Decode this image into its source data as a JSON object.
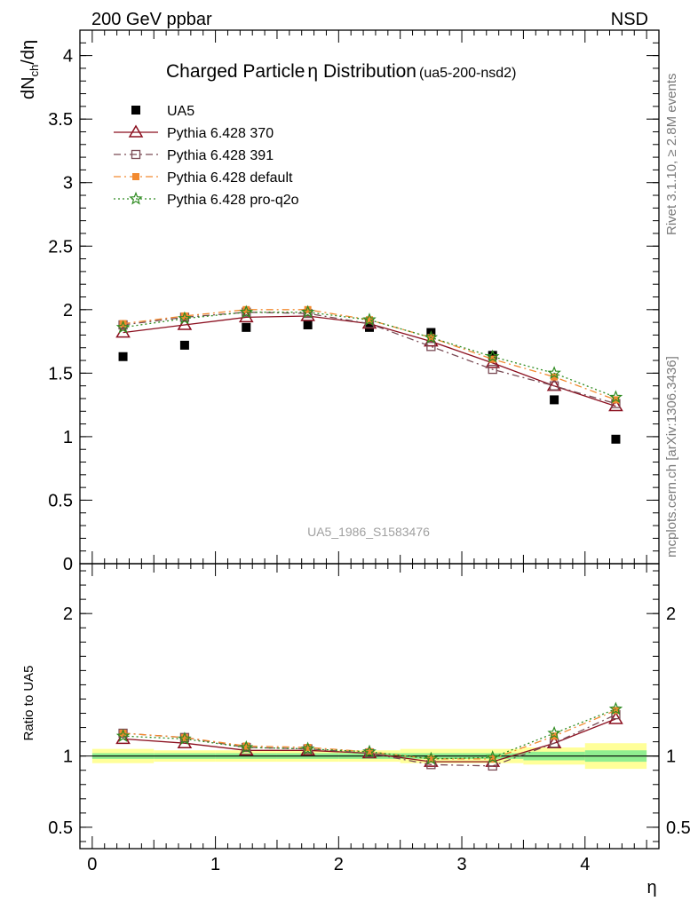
{
  "header": {
    "left": "200 GeV ppbar",
    "right": "NSD"
  },
  "side_labels": {
    "rivet": "Rivet 3.1.10, ≥ 2.8M events",
    "mcplots": "mcplots.cern.ch [arXiv:1306.3436]"
  },
  "chart_data": [
    {
      "type": "scatter",
      "panel": "main",
      "title_main": "Charged Particle",
      "title_symbol": "η",
      "title_rest": " Distribution",
      "title_small": "(ua5-200-nsd2)",
      "ylabel_main": "dN",
      "ylabel_sub": "ch",
      "ylabel_rest": "/dη",
      "watermark": "UA5_1986_S1583476",
      "xlim": [
        -0.1,
        4.6
      ],
      "ylim": [
        0,
        4.2
      ],
      "y_ticks": [
        0,
        0.5,
        1,
        1.5,
        2,
        2.5,
        3,
        3.5,
        4
      ],
      "y_tick_labels": [
        "0",
        "0.5",
        "1",
        "1.5",
        "2",
        "2.5",
        "3",
        "3.5",
        "4"
      ],
      "x": [
        0.25,
        0.75,
        1.25,
        1.75,
        2.25,
        2.75,
        3.25,
        3.75,
        4.25
      ],
      "legend_position": "top-left",
      "series": [
        {
          "name": "UA5",
          "color": "#000000",
          "marker": "square",
          "line": "none",
          "values": [
            1.63,
            1.72,
            1.86,
            1.88,
            1.86,
            1.82,
            1.64,
            1.29,
            0.98
          ]
        },
        {
          "name": "Pythia 6.428 370",
          "color": "#8b0f1f",
          "marker": "triangle",
          "line": "solid",
          "values": [
            1.82,
            1.88,
            1.94,
            1.95,
            1.89,
            1.75,
            1.58,
            1.4,
            1.24
          ]
        },
        {
          "name": "Pythia 6.428 391",
          "color": "#7a4b55",
          "marker": "square-open",
          "line": "dashdot",
          "values": [
            1.88,
            1.94,
            1.98,
            1.97,
            1.89,
            1.71,
            1.53,
            1.4,
            1.26
          ]
        },
        {
          "name": "Pythia 6.428 default",
          "color": "#f28a30",
          "marker": "square-filled",
          "line": "dashdot",
          "values": [
            1.89,
            1.95,
            2.0,
            2.0,
            1.92,
            1.78,
            1.61,
            1.47,
            1.29
          ]
        },
        {
          "name": "Pythia 6.428 pro-q2o",
          "color": "#2e8b20",
          "marker": "star",
          "line": "dotted",
          "values": [
            1.86,
            1.93,
            1.98,
            1.98,
            1.92,
            1.78,
            1.63,
            1.5,
            1.31
          ]
        }
      ]
    },
    {
      "type": "scatter",
      "panel": "ratio",
      "ylabel": "Ratio to UA5",
      "xlabel": "η",
      "xlim": [
        -0.1,
        4.6
      ],
      "ylim": [
        0.35,
        2.35
      ],
      "y_ticks": [
        0.5,
        1,
        2
      ],
      "y_tick_labels": [
        "0.5",
        "1",
        "2"
      ],
      "x_ticks": [
        0,
        1,
        2,
        3,
        4
      ],
      "x_tick_labels": [
        "0",
        "1",
        "2",
        "3",
        "4"
      ],
      "x": [
        0.25,
        0.75,
        1.25,
        1.75,
        2.25,
        2.75,
        3.25,
        3.75,
        4.25
      ],
      "uncertainty_bands": {
        "edges": [
          0,
          0.5,
          1.0,
          1.5,
          2.0,
          2.5,
          3.0,
          3.5,
          4.0,
          4.5
        ],
        "yellow": [
          [
            0.95,
            1.05
          ],
          [
            0.96,
            1.04
          ],
          [
            0.96,
            1.04
          ],
          [
            0.96,
            1.04
          ],
          [
            0.96,
            1.04
          ],
          [
            0.95,
            1.05
          ],
          [
            0.95,
            1.05
          ],
          [
            0.94,
            1.06
          ],
          [
            0.91,
            1.09
          ]
        ],
        "green": [
          [
            0.98,
            1.02
          ],
          [
            0.98,
            1.02
          ],
          [
            0.98,
            1.02
          ],
          [
            0.98,
            1.02
          ],
          [
            0.98,
            1.02
          ],
          [
            0.98,
            1.02
          ],
          [
            0.98,
            1.02
          ],
          [
            0.97,
            1.03
          ],
          [
            0.96,
            1.04
          ]
        ]
      },
      "series": [
        {
          "name": "Pythia 6.428 370",
          "values": [
            1.12,
            1.09,
            1.04,
            1.04,
            1.02,
            0.96,
            0.96,
            1.09,
            1.26
          ]
        },
        {
          "name": "Pythia 6.428 391",
          "values": [
            1.16,
            1.13,
            1.06,
            1.05,
            1.02,
            0.94,
            0.93,
            1.09,
            1.29
          ]
        },
        {
          "name": "Pythia 6.428 default",
          "values": [
            1.16,
            1.13,
            1.07,
            1.06,
            1.03,
            0.98,
            0.98,
            1.14,
            1.32
          ]
        },
        {
          "name": "Pythia 6.428 pro-q2o",
          "values": [
            1.14,
            1.12,
            1.06,
            1.05,
            1.03,
            0.98,
            0.99,
            1.16,
            1.33
          ]
        }
      ]
    }
  ]
}
